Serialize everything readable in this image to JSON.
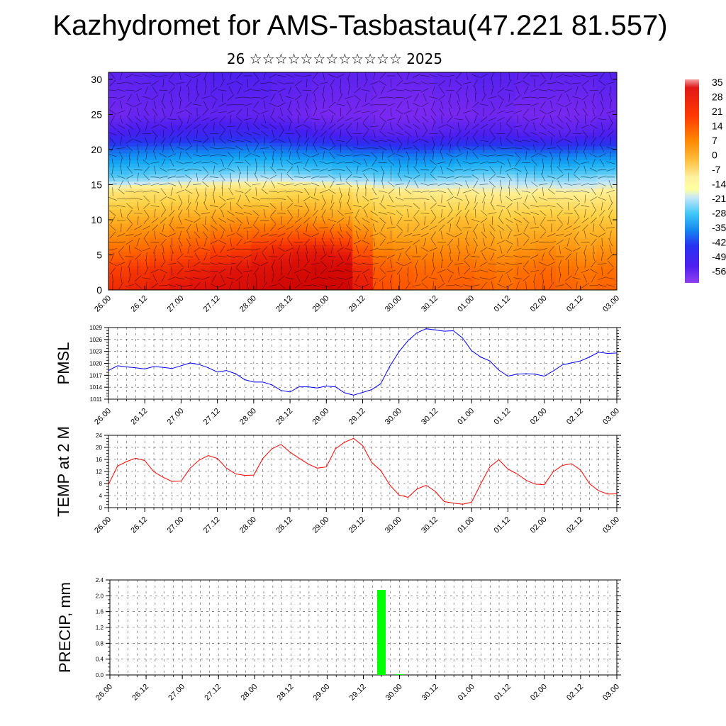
{
  "title": "Kazhydromet for AMS-Tasbastau(47.221 81.557)",
  "subtitle": "26 ☆☆☆☆☆☆☆☆☆☆☆☆ 2025",
  "time_ticks": [
    "26.00",
    "26.12",
    "27.00",
    "27.12",
    "28.00",
    "28.12",
    "29.00",
    "29.12",
    "30.00",
    "30.12",
    "01.00",
    "01.12",
    "02.00",
    "02.12",
    "03.00"
  ],
  "colorbar": {
    "labels": [
      "35",
      "28",
      "21",
      "14",
      "7",
      "0",
      "-7",
      "-14",
      "-21",
      "-28",
      "-35",
      "-42",
      "-49",
      "-56"
    ]
  },
  "chart_data": [
    {
      "type": "heatmap",
      "title": "",
      "ylabel": "",
      "yticks": [
        "0",
        "5",
        "10",
        "15",
        "20",
        "25",
        "30"
      ],
      "ylim": [
        0,
        31
      ],
      "x_ticks": [
        "26.00",
        "26.12",
        "27.00",
        "27.12",
        "28.00",
        "28.12",
        "29.00",
        "29.12",
        "30.00",
        "30.12",
        "01.00",
        "01.12",
        "02.00",
        "02.12",
        "03.00"
      ],
      "value_range": [
        -56,
        35
      ],
      "levels": [
        {
          "y": 0,
          "values": [
            25,
            26,
            27,
            28,
            29,
            30,
            31,
            32,
            33,
            33,
            33,
            33,
            27,
            20,
            19,
            18,
            18,
            18,
            17,
            16,
            17,
            18,
            17,
            16,
            17
          ]
        },
        {
          "y": 3,
          "values": [
            22,
            23,
            24,
            25,
            26,
            27,
            28,
            29,
            30,
            31,
            32,
            32,
            25,
            18,
            17,
            16,
            16,
            16,
            15,
            14,
            15,
            16,
            15,
            14,
            15
          ]
        },
        {
          "y": 6,
          "values": [
            15,
            16,
            17,
            18,
            19,
            21,
            22,
            24,
            25,
            26,
            26,
            25,
            18,
            12,
            11,
            11,
            11,
            11,
            10,
            9,
            10,
            11,
            10,
            9,
            10
          ]
        },
        {
          "y": 10,
          "values": [
            6,
            7,
            7,
            8,
            8,
            9,
            10,
            10,
            11,
            11,
            10,
            9,
            6,
            4,
            3,
            3,
            3,
            4,
            3,
            2,
            3,
            3,
            3,
            2,
            2
          ]
        },
        {
          "y": 14,
          "values": [
            -6,
            -5,
            -5,
            -4,
            -4,
            -3,
            -3,
            -3,
            -2,
            -2,
            -2,
            -3,
            -5,
            -7,
            -8,
            -9,
            -9,
            -9,
            -10,
            -10,
            -10,
            -9,
            -10,
            -10,
            -9
          ]
        },
        {
          "y": 16,
          "values": [
            -20,
            -19,
            -18,
            -17,
            -16,
            -16,
            -15,
            -15,
            -15,
            -16,
            -17,
            -18,
            -18,
            -19,
            -20,
            -20,
            -19,
            -18,
            -17,
            -17,
            -18,
            -19,
            -19,
            -18,
            -17
          ]
        },
        {
          "y": 19,
          "values": [
            -32,
            -31,
            -31,
            -30,
            -30,
            -30,
            -29,
            -29,
            -30,
            -31,
            -31,
            -32,
            -33,
            -33,
            -34,
            -34,
            -33,
            -32,
            -32,
            -32,
            -33,
            -33,
            -33,
            -32,
            -32
          ]
        },
        {
          "y": 22,
          "values": [
            -48,
            -47,
            -47,
            -46,
            -46,
            -45,
            -45,
            -45,
            -46,
            -47,
            -48,
            -49,
            -50,
            -51,
            -51,
            -51,
            -50,
            -49,
            -49,
            -49,
            -50,
            -51,
            -51,
            -50,
            -49
          ]
        },
        {
          "y": 25,
          "values": [
            -55,
            -54,
            -54,
            -54,
            -53,
            -53,
            -53,
            -53,
            -54,
            -55,
            -56,
            -56,
            -56,
            -57,
            -57,
            -57,
            -56,
            -56,
            -55,
            -55,
            -56,
            -56,
            -56,
            -56,
            -55
          ]
        },
        {
          "y": 31,
          "values": [
            -52,
            -52,
            -51,
            -51,
            -51,
            -50,
            -50,
            -50,
            -51,
            -51,
            -52,
            -52,
            -52,
            -53,
            -53,
            -53,
            -52,
            -52,
            -51,
            -51,
            -52,
            -52,
            -52,
            -52,
            -51
          ]
        }
      ]
    },
    {
      "type": "line",
      "title": "",
      "ylabel": "PMSL",
      "ylim": [
        1011,
        1029
      ],
      "yticks": [
        "1011",
        "1014",
        "1017",
        "1020",
        "1023",
        "1026",
        "1029"
      ],
      "x_ticks": [
        "26.00",
        "26.12",
        "27.00",
        "27.12",
        "28.00",
        "28.12",
        "29.00",
        "29.12",
        "30.00",
        "30.12",
        "01.00",
        "01.12",
        "02.00",
        "02.12",
        "03.00"
      ],
      "x": [
        0,
        1,
        2,
        3,
        4,
        5,
        6,
        7,
        8,
        9,
        10,
        11,
        12,
        13,
        14,
        15,
        16,
        17,
        18,
        19,
        20,
        21,
        22,
        23,
        24,
        25,
        26,
        27,
        28,
        29,
        30,
        31,
        32,
        33,
        34,
        35,
        36,
        37,
        38,
        39,
        40,
        41,
        42,
        43,
        44,
        45,
        46,
        47,
        48,
        49,
        50,
        51,
        52,
        53,
        54,
        55,
        56
      ],
      "series": [
        {
          "color": "#0000ff",
          "values": [
            1018.2,
            1019.4,
            1019.1,
            1018.9,
            1018.6,
            1019.2,
            1019.0,
            1018.7,
            1019.4,
            1020.1,
            1019.7,
            1018.9,
            1017.8,
            1018.2,
            1017.4,
            1015.9,
            1015.3,
            1015.3,
            1014.6,
            1013.2,
            1012.8,
            1014.1,
            1014.1,
            1013.8,
            1014.3,
            1014.1,
            1012.6,
            1012.0,
            1012.7,
            1013.4,
            1014.9,
            1019.3,
            1022.9,
            1025.7,
            1027.7,
            1028.7,
            1028.4,
            1028.1,
            1028.2,
            1026.4,
            1023.2,
            1021.6,
            1020.6,
            1018.3,
            1016.8,
            1017.3,
            1017.4,
            1017.3,
            1016.8,
            1018.1,
            1019.6,
            1020.1,
            1020.6,
            1021.6,
            1022.8,
            1022.5,
            1022.6
          ]
        }
      ]
    },
    {
      "type": "line",
      "title": "",
      "ylabel": "TEMP at 2 M",
      "ylim": [
        0,
        24
      ],
      "yticks": [
        "0",
        "4",
        "8",
        "12",
        "16",
        "20",
        "24"
      ],
      "x_ticks": [
        "26.00",
        "26.12",
        "27.00",
        "27.12",
        "28.00",
        "28.12",
        "29.00",
        "29.12",
        "30.00",
        "30.12",
        "01.00",
        "01.12",
        "02.00",
        "02.12",
        "03.00"
      ],
      "x": [
        0,
        1,
        2,
        3,
        4,
        5,
        6,
        7,
        8,
        9,
        10,
        11,
        12,
        13,
        14,
        15,
        16,
        17,
        18,
        19,
        20,
        21,
        22,
        23,
        24,
        25,
        26,
        27,
        28,
        29,
        30,
        31,
        32,
        33,
        34,
        35,
        36,
        37,
        38,
        39,
        40,
        41,
        42,
        43,
        44,
        45,
        46,
        47,
        48,
        49,
        50,
        51,
        52,
        53,
        54,
        55,
        56
      ],
      "series": [
        {
          "color": "#ff0000",
          "values": [
            7.7,
            13.8,
            15.3,
            16.4,
            15.6,
            11.9,
            10.1,
            8.7,
            8.8,
            13.1,
            15.8,
            17.3,
            16.3,
            13.1,
            11.2,
            10.7,
            10.8,
            16.3,
            19.5,
            21.0,
            18.4,
            16.4,
            14.5,
            13.1,
            13.5,
            19.5,
            21.7,
            23.0,
            20.6,
            15.0,
            12.3,
            7.5,
            4.2,
            3.4,
            6.2,
            7.4,
            5.4,
            2.0,
            1.5,
            1.1,
            1.8,
            7.8,
            13.5,
            15.9,
            12.8,
            11.2,
            9.1,
            7.8,
            7.6,
            11.9,
            14.0,
            14.6,
            12.5,
            7.9,
            5.6,
            4.5,
            4.6
          ]
        }
      ]
    },
    {
      "type": "bar",
      "title": "",
      "ylabel": "PRECIP, mm",
      "ylim": [
        0,
        2.4
      ],
      "yticks": [
        "0.0",
        "0.4",
        "0.8",
        "1.2",
        "1.6",
        "2.0",
        "2.4"
      ],
      "x_ticks": [
        "26.00",
        "26.12",
        "27.00",
        "27.12",
        "28.00",
        "28.12",
        "29.00",
        "29.12",
        "30.00",
        "30.12",
        "01.00",
        "01.12",
        "02.00",
        "02.12",
        "03.00"
      ],
      "bars": [
        {
          "x": 29.75,
          "value": 2.15,
          "color": "#00ff00"
        },
        {
          "x": 30.0,
          "value": 0.02,
          "color": "#00ff00"
        }
      ]
    }
  ]
}
